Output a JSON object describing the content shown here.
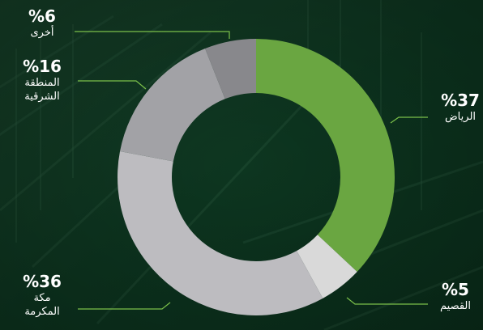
{
  "chart_data": {
    "type": "donut",
    "title": "",
    "start_angle_deg": 0,
    "direction": "clockwise",
    "slices": [
      {
        "label": "الرياض",
        "percent_text": "%37",
        "value": 37,
        "color": "#6aa641"
      },
      {
        "label": "القصيم",
        "percent_text": "%5",
        "value": 5,
        "color": "#d9d9d9"
      },
      {
        "label": "مكة المكرمة",
        "label_lines": [
          "مكة",
          "المكرمة"
        ],
        "percent_text": "%36",
        "value": 36,
        "color": "#bdbcc0"
      },
      {
        "label": "المنطقة الشرقية",
        "label_lines": [
          "المنطقة",
          "الشرقية"
        ],
        "percent_text": "%16",
        "value": 16,
        "color": "#a2a2a6"
      },
      {
        "label": "أخرى",
        "percent_text": "%6",
        "value": 6,
        "color": "#88888c"
      }
    ]
  },
  "colors": {
    "background": "#0f3a22",
    "leader_line": "#7bc04a"
  }
}
